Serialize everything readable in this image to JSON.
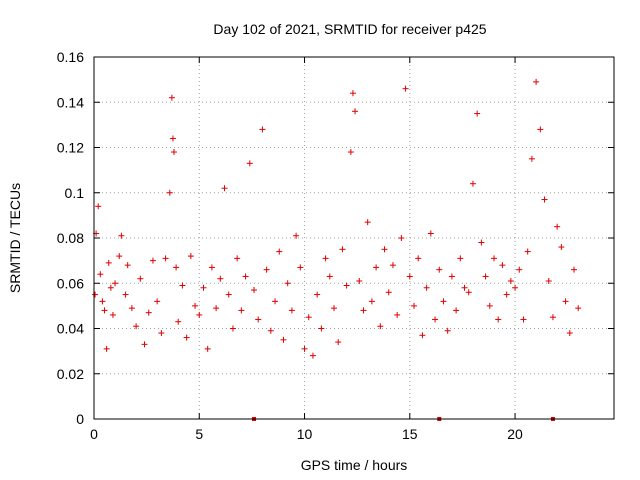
{
  "chart_data": {
    "type": "scatter",
    "title": "Day 102 of 2021, SRMTID for receiver p425",
    "xlabel": "GPS time / hours",
    "ylabel": "SRMTID / TECUs",
    "xlim": [
      0,
      24.7
    ],
    "ylim": [
      0,
      0.16
    ],
    "x_ticks": [
      "0",
      "5",
      "10",
      "15",
      "20"
    ],
    "y_ticks": [
      "0",
      "0.02",
      "0.04",
      "0.06",
      "0.08",
      "0.1",
      "0.12",
      "0.14",
      "0.16"
    ],
    "x_tick_values": [
      0,
      5,
      10,
      15,
      20
    ],
    "y_tick_values": [
      0,
      0.02,
      0.04,
      0.06,
      0.08,
      0.1,
      0.12,
      0.14,
      0.16
    ],
    "grid": true,
    "marker": "+",
    "series_color": "#e00000",
    "axis_markers_x": [
      7.6,
      16.4,
      21.8
    ],
    "series": [
      {
        "name": "SRMTID",
        "x": [
          0.05,
          0.1,
          0.2,
          0.3,
          0.4,
          0.5,
          0.6,
          0.7,
          0.8,
          0.9,
          1.0,
          1.2,
          1.3,
          1.5,
          1.6,
          1.8,
          2.0,
          2.2,
          2.4,
          2.6,
          2.8,
          3.0,
          3.2,
          3.4,
          3.6,
          3.7,
          3.75,
          3.8,
          3.9,
          4.0,
          4.2,
          4.4,
          4.6,
          4.8,
          5.0,
          5.2,
          5.4,
          5.6,
          5.8,
          6.0,
          6.2,
          6.4,
          6.6,
          6.8,
          7.0,
          7.2,
          7.4,
          7.6,
          7.8,
          8.0,
          8.2,
          8.4,
          8.6,
          8.8,
          9.0,
          9.2,
          9.4,
          9.6,
          9.8,
          10.0,
          10.2,
          10.4,
          10.6,
          10.8,
          11.0,
          11.2,
          11.4,
          11.6,
          11.8,
          12.0,
          12.2,
          12.3,
          12.4,
          12.6,
          12.8,
          13.0,
          13.2,
          13.4,
          13.6,
          13.8,
          14.0,
          14.2,
          14.4,
          14.6,
          14.8,
          15.0,
          15.2,
          15.4,
          15.6,
          15.8,
          16.0,
          16.2,
          16.4,
          16.6,
          16.8,
          17.0,
          17.2,
          17.4,
          17.6,
          17.8,
          18.0,
          18.2,
          18.4,
          18.6,
          18.8,
          19.0,
          19.2,
          19.4,
          19.6,
          19.8,
          20.0,
          20.2,
          20.4,
          20.6,
          20.8,
          21.0,
          21.2,
          21.4,
          21.6,
          21.8,
          22.0,
          22.2,
          22.4,
          22.6,
          22.8,
          23.0
        ],
        "y": [
          0.055,
          0.082,
          0.094,
          0.064,
          0.052,
          0.048,
          0.031,
          0.069,
          0.058,
          0.046,
          0.06,
          0.072,
          0.081,
          0.055,
          0.068,
          0.049,
          0.041,
          0.062,
          0.033,
          0.047,
          0.07,
          0.052,
          0.038,
          0.071,
          0.1,
          0.142,
          0.124,
          0.118,
          0.067,
          0.043,
          0.059,
          0.036,
          0.072,
          0.05,
          0.046,
          0.058,
          0.031,
          0.067,
          0.049,
          0.062,
          0.102,
          0.055,
          0.04,
          0.071,
          0.048,
          0.063,
          0.113,
          0.057,
          0.044,
          0.128,
          0.066,
          0.039,
          0.052,
          0.074,
          0.035,
          0.06,
          0.048,
          0.081,
          0.067,
          0.031,
          0.045,
          0.028,
          0.055,
          0.04,
          0.071,
          0.063,
          0.049,
          0.034,
          0.075,
          0.059,
          0.118,
          0.144,
          0.136,
          0.061,
          0.048,
          0.087,
          0.052,
          0.067,
          0.041,
          0.075,
          0.056,
          0.068,
          0.046,
          0.08,
          0.146,
          0.063,
          0.05,
          0.071,
          0.037,
          0.058,
          0.082,
          0.044,
          0.066,
          0.052,
          0.039,
          0.063,
          0.048,
          0.071,
          0.058,
          0.056,
          0.104,
          0.135,
          0.078,
          0.063,
          0.05,
          0.071,
          0.044,
          0.068,
          0.055,
          0.061,
          0.058,
          0.066,
          0.044,
          0.074,
          0.115,
          0.149,
          0.128,
          0.097,
          0.061,
          0.045,
          0.085,
          0.076,
          0.052,
          0.038,
          0.066,
          0.049
        ]
      }
    ]
  }
}
